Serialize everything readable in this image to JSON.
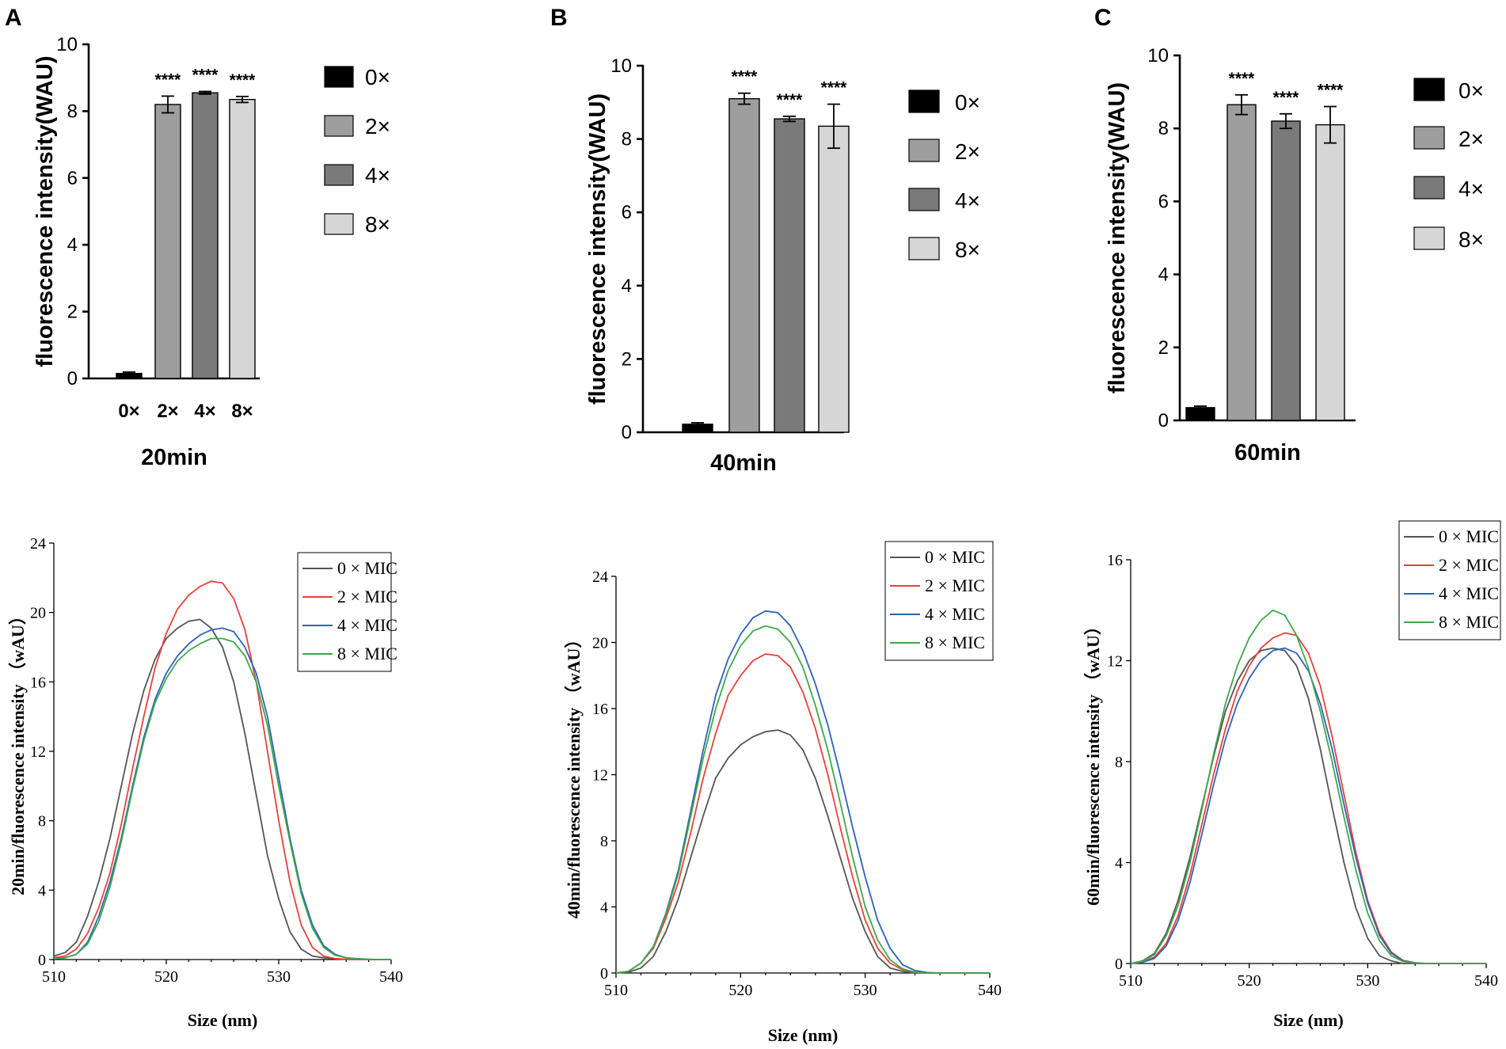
{
  "panel_labels": [
    "A",
    "B",
    "C"
  ],
  "chart_data": [
    {
      "type": "bar",
      "panel": "A",
      "title": "20min",
      "ylabel": "fluorescence intensity(WAU)",
      "ylim": [
        0,
        10
      ],
      "yticks": [
        "0",
        "2",
        "4",
        "6",
        "8",
        "10"
      ],
      "categories": [
        "0×",
        "2×",
        "4×",
        "8×"
      ],
      "show_category_labels": true,
      "values": [
        0.15,
        8.2,
        8.55,
        8.35
      ],
      "errors": [
        0.04,
        0.25,
        0.04,
        0.09
      ],
      "significance": [
        "",
        "****",
        "****",
        "****"
      ],
      "colors": [
        "#000000",
        "#9e9e9e",
        "#7a7a7a",
        "#d6d6d6"
      ],
      "legend": [
        "0×",
        "2×",
        "4×",
        "8×"
      ]
    },
    {
      "type": "bar",
      "panel": "B",
      "title": "40min",
      "ylabel": "fluorescence intensity(WAU)",
      "ylim": [
        0,
        10
      ],
      "yticks": [
        "0",
        "2",
        "4",
        "6",
        "8",
        "10"
      ],
      "categories": [
        "0×",
        "2×",
        "4×",
        "8×"
      ],
      "show_category_labels": false,
      "values": [
        0.22,
        9.1,
        8.55,
        8.35
      ],
      "errors": [
        0.04,
        0.15,
        0.07,
        0.6
      ],
      "significance": [
        "",
        "****",
        "****",
        "****"
      ],
      "colors": [
        "#000000",
        "#9e9e9e",
        "#7a7a7a",
        "#d6d6d6"
      ],
      "legend": [
        "0×",
        "2×",
        "4×",
        "8×"
      ]
    },
    {
      "type": "bar",
      "panel": "C",
      "title": "60min",
      "ylabel": "fluorescence intensity(WAU)",
      "ylim": [
        0,
        10
      ],
      "yticks": [
        "0",
        "2",
        "4",
        "6",
        "8",
        "10"
      ],
      "categories": [
        "0×",
        "2×",
        "4×",
        "8×"
      ],
      "show_category_labels": false,
      "values": [
        0.35,
        8.65,
        8.2,
        8.1
      ],
      "errors": [
        0.04,
        0.27,
        0.2,
        0.5
      ],
      "significance": [
        "",
        "****",
        "****",
        "****"
      ],
      "colors": [
        "#000000",
        "#9e9e9e",
        "#7a7a7a",
        "#d6d6d6"
      ],
      "legend": [
        "0×",
        "2×",
        "4×",
        "8×"
      ]
    },
    {
      "type": "line",
      "panel": "A",
      "xlabel": "Size (nm)",
      "ylabel": "20min/fluorescence intensity （wAU）",
      "xlim": [
        510,
        540
      ],
      "ylim": [
        0,
        24
      ],
      "xticks": [
        510,
        520,
        530,
        540
      ],
      "yticks": [
        0,
        4,
        8,
        12,
        16,
        20,
        24
      ],
      "x": [
        510,
        511,
        512,
        513,
        514,
        515,
        516,
        517,
        518,
        519,
        520,
        521,
        522,
        523,
        524,
        525,
        526,
        527,
        528,
        529,
        530,
        531,
        532,
        533,
        534,
        535,
        536,
        537,
        538,
        539,
        540
      ],
      "series": [
        {
          "name": "0 × MIC",
          "color": "#555555",
          "values": [
            0.2,
            0.4,
            1.0,
            2.5,
            4.5,
            7.0,
            10.0,
            13.0,
            15.5,
            17.3,
            18.5,
            19.1,
            19.5,
            19.6,
            19.1,
            18.0,
            16.0,
            13.0,
            9.5,
            6.0,
            3.5,
            1.6,
            0.6,
            0.2,
            0.1,
            0.05,
            0.02,
            0.01,
            0,
            0,
            0
          ]
        },
        {
          "name": "2 × MIC",
          "color": "#e8413a",
          "values": [
            0.1,
            0.2,
            0.6,
            1.5,
            3.0,
            5.0,
            7.8,
            11.0,
            14.0,
            16.8,
            18.8,
            20.2,
            21.0,
            21.5,
            21.8,
            21.7,
            20.8,
            19.0,
            16.0,
            12.0,
            8.0,
            4.5,
            2.0,
            0.7,
            0.2,
            0.05,
            0.02,
            0.01,
            0,
            0,
            0
          ]
        },
        {
          "name": "4 × MIC",
          "color": "#2e63b8",
          "values": [
            0.05,
            0.1,
            0.3,
            1.0,
            2.5,
            4.5,
            7.0,
            10.0,
            12.8,
            15.0,
            16.5,
            17.5,
            18.2,
            18.7,
            19.0,
            19.1,
            18.9,
            18.0,
            16.5,
            14.0,
            10.5,
            7.0,
            4.0,
            2.0,
            0.8,
            0.3,
            0.1,
            0.05,
            0.02,
            0,
            0
          ]
        },
        {
          "name": "8 × MIC",
          "color": "#3ea84a",
          "values": [
            0.05,
            0.1,
            0.3,
            0.9,
            2.2,
            4.2,
            6.8,
            9.8,
            12.6,
            14.8,
            16.2,
            17.2,
            17.8,
            18.2,
            18.5,
            18.5,
            18.3,
            17.5,
            16.0,
            13.5,
            10.0,
            6.8,
            3.8,
            1.8,
            0.7,
            0.25,
            0.1,
            0.04,
            0.01,
            0,
            0
          ]
        }
      ]
    },
    {
      "type": "line",
      "panel": "B",
      "xlabel": "Size (nm)",
      "ylabel": "40min/fluorescence intensity （wAU）",
      "xlim": [
        510,
        540
      ],
      "ylim": [
        0,
        24
      ],
      "xticks": [
        510,
        520,
        530,
        540
      ],
      "yticks": [
        0,
        4,
        8,
        12,
        16,
        20,
        24
      ],
      "x": [
        510,
        511,
        512,
        513,
        514,
        515,
        516,
        517,
        518,
        519,
        520,
        521,
        522,
        523,
        524,
        525,
        526,
        527,
        528,
        529,
        530,
        531,
        532,
        533,
        534,
        535,
        536,
        537,
        538,
        539,
        540
      ],
      "series": [
        {
          "name": "0 × MIC",
          "color": "#555555",
          "values": [
            0,
            0.05,
            0.3,
            1.0,
            2.5,
            4.5,
            7.0,
            9.5,
            11.8,
            13.0,
            13.8,
            14.3,
            14.6,
            14.7,
            14.4,
            13.5,
            11.8,
            9.5,
            7.0,
            4.5,
            2.5,
            1.0,
            0.3,
            0.1,
            0,
            0,
            0,
            0,
            0,
            0,
            0
          ]
        },
        {
          "name": "2 × MIC",
          "color": "#e8413a",
          "values": [
            0,
            0.1,
            0.6,
            1.5,
            3.3,
            5.5,
            8.5,
            11.8,
            14.5,
            16.8,
            18.0,
            18.9,
            19.3,
            19.2,
            18.5,
            17.0,
            14.8,
            12.0,
            8.8,
            5.8,
            3.2,
            1.5,
            0.6,
            0.2,
            0.05,
            0,
            0,
            0,
            0,
            0,
            0
          ]
        },
        {
          "name": "4 × MIC",
          "color": "#2e63b8",
          "values": [
            0,
            0.1,
            0.6,
            1.6,
            3.6,
            6.2,
            9.8,
            13.5,
            16.8,
            19.0,
            20.5,
            21.5,
            21.9,
            21.8,
            21.0,
            19.5,
            17.5,
            15.0,
            12.0,
            8.8,
            5.8,
            3.2,
            1.5,
            0.5,
            0.15,
            0.03,
            0,
            0,
            0,
            0,
            0
          ]
        },
        {
          "name": "8 × MIC",
          "color": "#3ea84a",
          "values": [
            0,
            0.1,
            0.6,
            1.6,
            3.5,
            6.0,
            9.5,
            13.0,
            16.0,
            18.3,
            19.8,
            20.7,
            21.0,
            20.8,
            20.0,
            18.5,
            16.2,
            13.5,
            10.3,
            7.0,
            4.0,
            2.0,
            0.8,
            0.25,
            0.05,
            0,
            0,
            0,
            0,
            0,
            0
          ]
        }
      ]
    },
    {
      "type": "line",
      "panel": "C",
      "xlabel": "Size (nm)",
      "ylabel": "60min/fluorescence intensity （wAU）",
      "xlim": [
        510,
        540
      ],
      "ylim": [
        0,
        16
      ],
      "xticks": [
        510,
        520,
        530,
        540
      ],
      "yticks": [
        0,
        4,
        8,
        12,
        16
      ],
      "x": [
        510,
        511,
        512,
        513,
        514,
        515,
        516,
        517,
        518,
        519,
        520,
        521,
        522,
        523,
        524,
        525,
        526,
        527,
        528,
        529,
        530,
        531,
        532,
        533,
        534,
        535,
        536,
        537,
        538,
        539,
        540
      ],
      "series": [
        {
          "name": "0 × MIC",
          "color": "#555555",
          "values": [
            0,
            0.1,
            0.4,
            1.2,
            2.5,
            4.2,
            6.2,
            8.2,
            10.0,
            11.2,
            12.0,
            12.4,
            12.5,
            12.4,
            11.8,
            10.5,
            8.5,
            6.2,
            4.0,
            2.2,
            1.0,
            0.3,
            0.1,
            0,
            0,
            0,
            0,
            0,
            0,
            0,
            0
          ]
        },
        {
          "name": "2 × MIC",
          "color": "#e8413a",
          "values": [
            0,
            0.05,
            0.25,
            0.8,
            1.9,
            3.5,
            5.5,
            7.5,
            9.3,
            10.8,
            11.8,
            12.5,
            12.9,
            13.1,
            13.0,
            12.3,
            11.0,
            9.0,
            6.7,
            4.4,
            2.5,
            1.2,
            0.45,
            0.12,
            0.03,
            0,
            0,
            0,
            0,
            0,
            0
          ]
        },
        {
          "name": "4 × MIC",
          "color": "#2e63b8",
          "values": [
            0,
            0.05,
            0.2,
            0.7,
            1.7,
            3.2,
            5.1,
            7.1,
            8.9,
            10.3,
            11.3,
            12.0,
            12.4,
            12.5,
            12.3,
            11.6,
            10.3,
            8.5,
            6.3,
            4.2,
            2.4,
            1.1,
            0.4,
            0.1,
            0.02,
            0,
            0,
            0,
            0,
            0,
            0
          ]
        },
        {
          "name": "8 × MIC",
          "color": "#3ea84a",
          "values": [
            0,
            0.08,
            0.35,
            1.1,
            2.3,
            4.0,
            6.1,
            8.3,
            10.3,
            11.8,
            12.9,
            13.6,
            14.0,
            13.8,
            13.0,
            11.7,
            10.0,
            8.0,
            5.8,
            3.7,
            2.0,
            0.9,
            0.3,
            0.08,
            0.02,
            0,
            0,
            0,
            0,
            0,
            0
          ]
        }
      ]
    }
  ]
}
